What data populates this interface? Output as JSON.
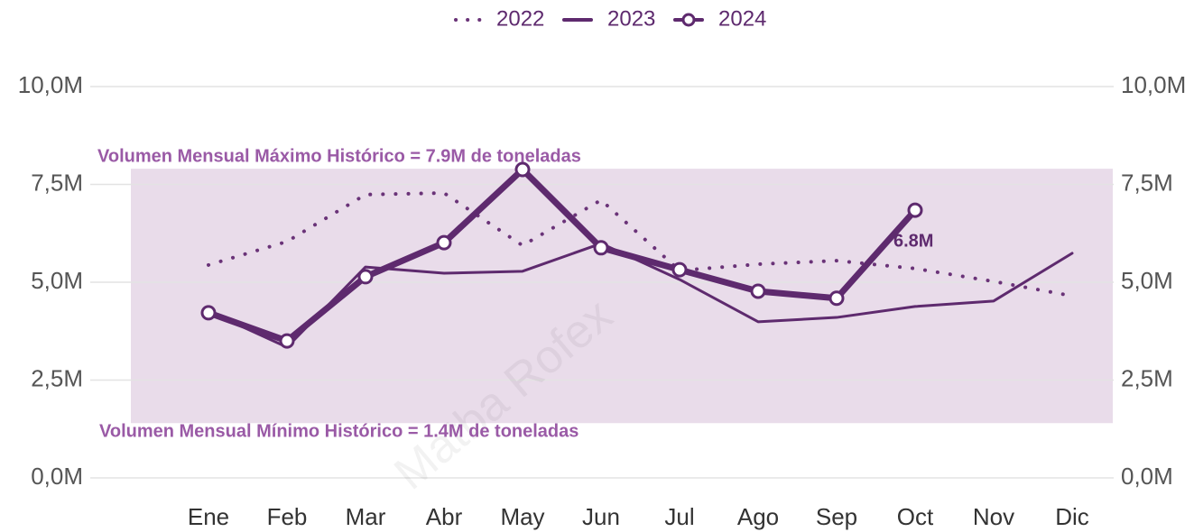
{
  "chart_data": {
    "type": "line",
    "categories": [
      "Ene",
      "Feb",
      "Mar",
      "Abr",
      "May",
      "Jun",
      "Jul",
      "Ago",
      "Sep",
      "Oct",
      "Nov",
      "Dic"
    ],
    "series": [
      {
        "name": "2022",
        "color": "#6a3378",
        "line_style": "dotted",
        "markers": false,
        "values": [
          5440000,
          6040000,
          7240000,
          7280000,
          5940000,
          7100000,
          5300000,
          5460000,
          5550000,
          5350000,
          5020000,
          4650000
        ]
      },
      {
        "name": "2023",
        "color": "#5e2a6e",
        "line_style": "solid",
        "markers": false,
        "values": [
          4260000,
          3340000,
          5390000,
          5230000,
          5280000,
          5990000,
          5070000,
          3990000,
          4100000,
          4380000,
          4520000,
          5740000
        ]
      },
      {
        "name": "2024",
        "color": "#5e2a6e",
        "line_style": "solid",
        "markers": true,
        "values": [
          4220000,
          3500000,
          5140000,
          6010000,
          7880000,
          5880000,
          5320000,
          4770000,
          4590000,
          6840000,
          null,
          null
        ],
        "value_labels": [
          null,
          null,
          null,
          null,
          null,
          null,
          null,
          null,
          null,
          "6.8M",
          null,
          null
        ]
      }
    ],
    "ylim": [
      0,
      10000000
    ],
    "yticks": [
      {
        "value": 0,
        "label": "0,0M"
      },
      {
        "value": 2500000,
        "label": "2,5M"
      },
      {
        "value": 5000000,
        "label": "5,0M"
      },
      {
        "value": 7500000,
        "label": "7,5M"
      },
      {
        "value": 10000000,
        "label": "10,0M"
      }
    ],
    "y2lim": [
      0,
      10000000
    ],
    "y2ticks": [
      {
        "value": 0,
        "label": "0,0M"
      },
      {
        "value": 2500000,
        "label": "2,5M"
      },
      {
        "value": 5000000,
        "label": "5,0M"
      },
      {
        "value": 7500000,
        "label": "7,5M"
      },
      {
        "value": 10000000,
        "label": "10,0M"
      }
    ],
    "grid": true,
    "legend": "top",
    "band": {
      "values": [
        1400000,
        7900000
      ],
      "color": "#e9dcea"
    },
    "annotations": [
      "Volumen Mensual Máximo Histórico = 7.9M de toneladas",
      "Volumen Mensual Mínimo Histórico = 1.4M de toneladas"
    ],
    "watermark": "Matba Rofex"
  }
}
